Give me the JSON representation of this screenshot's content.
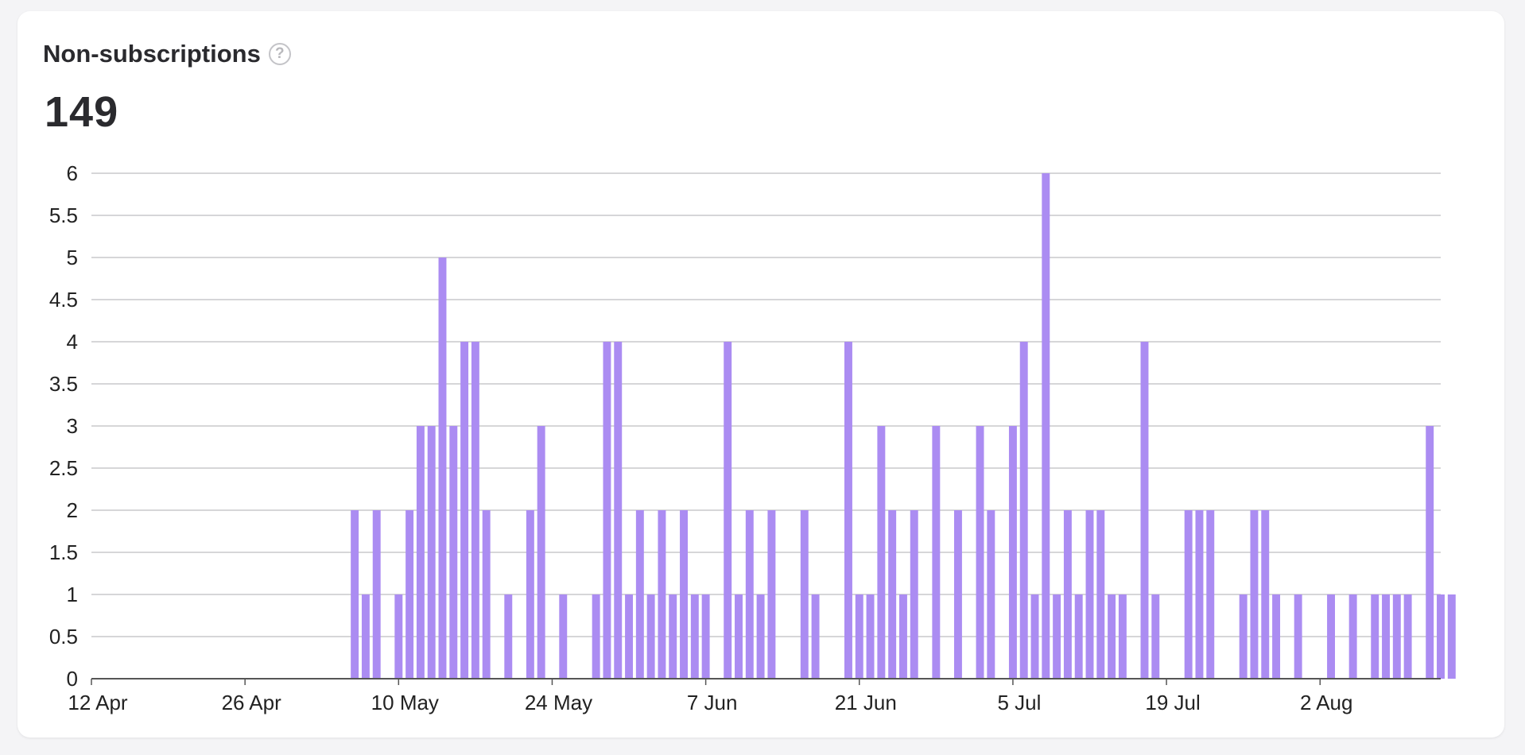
{
  "card": {
    "title": "Non-subscriptions",
    "help_icon": "question-circle-icon",
    "total": "149"
  },
  "colors": {
    "bar": "#ab8cf2",
    "grid": "#c8c8cc",
    "axis": "#555555"
  },
  "chart_data": {
    "type": "bar",
    "x_start": "2025-04-12",
    "x_end": "2025-08-13",
    "ylim": [
      0,
      6
    ],
    "y_ticks": [
      "0",
      "0.5",
      "1",
      "1.5",
      "2",
      "2.5",
      "3",
      "3.5",
      "4",
      "4.5",
      "5",
      "5.5",
      "6"
    ],
    "x_tick_labels": [
      "12 Apr",
      "26 Apr",
      "10 May",
      "24 May",
      "7 Jun",
      "21 Jun",
      "5 Jul",
      "19 Jul",
      "2 Aug"
    ],
    "grid": true,
    "points": [
      [
        "2025-05-06",
        2
      ],
      [
        "2025-05-07",
        1
      ],
      [
        "2025-05-08",
        2
      ],
      [
        "2025-05-10",
        1
      ],
      [
        "2025-05-11",
        2
      ],
      [
        "2025-05-12",
        3
      ],
      [
        "2025-05-13",
        3
      ],
      [
        "2025-05-14",
        5
      ],
      [
        "2025-05-15",
        3
      ],
      [
        "2025-05-16",
        4
      ],
      [
        "2025-05-17",
        4
      ],
      [
        "2025-05-18",
        2
      ],
      [
        "2025-05-20",
        1
      ],
      [
        "2025-05-22",
        2
      ],
      [
        "2025-05-23",
        3
      ],
      [
        "2025-05-25",
        1
      ],
      [
        "2025-05-28",
        1
      ],
      [
        "2025-05-29",
        4
      ],
      [
        "2025-05-30",
        4
      ],
      [
        "2025-05-31",
        1
      ],
      [
        "2025-06-01",
        2
      ],
      [
        "2025-06-02",
        1
      ],
      [
        "2025-06-03",
        2
      ],
      [
        "2025-06-04",
        1
      ],
      [
        "2025-06-05",
        2
      ],
      [
        "2025-06-06",
        1
      ],
      [
        "2025-06-07",
        1
      ],
      [
        "2025-06-09",
        4
      ],
      [
        "2025-06-10",
        1
      ],
      [
        "2025-06-11",
        2
      ],
      [
        "2025-06-12",
        1
      ],
      [
        "2025-06-13",
        2
      ],
      [
        "2025-06-16",
        2
      ],
      [
        "2025-06-17",
        1
      ],
      [
        "2025-06-20",
        4
      ],
      [
        "2025-06-21",
        1
      ],
      [
        "2025-06-22",
        1
      ],
      [
        "2025-06-23",
        3
      ],
      [
        "2025-06-24",
        2
      ],
      [
        "2025-06-25",
        1
      ],
      [
        "2025-06-26",
        2
      ],
      [
        "2025-06-28",
        3
      ],
      [
        "2025-06-30",
        2
      ],
      [
        "2025-07-02",
        3
      ],
      [
        "2025-07-03",
        2
      ],
      [
        "2025-07-05",
        3
      ],
      [
        "2025-07-06",
        4
      ],
      [
        "2025-07-07",
        1
      ],
      [
        "2025-07-08",
        6
      ],
      [
        "2025-07-09",
        1
      ],
      [
        "2025-07-10",
        2
      ],
      [
        "2025-07-11",
        1
      ],
      [
        "2025-07-12",
        2
      ],
      [
        "2025-07-13",
        2
      ],
      [
        "2025-07-14",
        1
      ],
      [
        "2025-07-15",
        1
      ],
      [
        "2025-07-17",
        4
      ],
      [
        "2025-07-18",
        1
      ],
      [
        "2025-07-21",
        2
      ],
      [
        "2025-07-22",
        2
      ],
      [
        "2025-07-23",
        2
      ],
      [
        "2025-07-26",
        1
      ],
      [
        "2025-07-27",
        2
      ],
      [
        "2025-07-28",
        2
      ],
      [
        "2025-07-29",
        1
      ],
      [
        "2025-07-31",
        1
      ],
      [
        "2025-08-03",
        1
      ],
      [
        "2025-08-05",
        1
      ],
      [
        "2025-08-07",
        1
      ],
      [
        "2025-08-08",
        1
      ],
      [
        "2025-08-09",
        1
      ],
      [
        "2025-08-10",
        1
      ],
      [
        "2025-08-12",
        3
      ],
      [
        "2025-08-13",
        1
      ],
      [
        "2025-08-14",
        1
      ]
    ]
  }
}
